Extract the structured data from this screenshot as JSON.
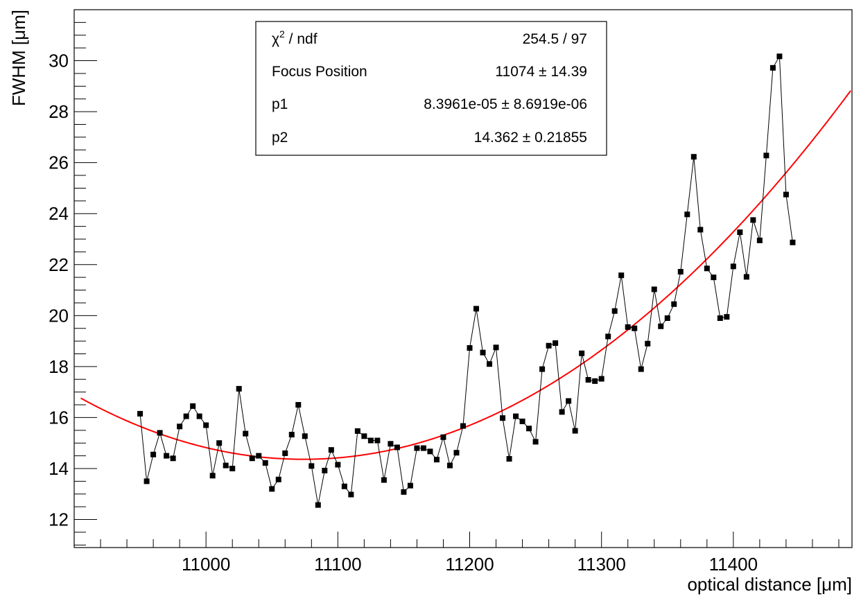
{
  "chart_data": {
    "type": "scatter",
    "title": "",
    "xlabel": "optical distance [μm]",
    "ylabel": "FWHM [μm]",
    "xlim": [
      10900,
      11490
    ],
    "ylim": [
      10.9,
      32
    ],
    "x_ticks": [
      11000,
      11100,
      11200,
      11300,
      11400
    ],
    "y_ticks": [
      12,
      14,
      16,
      18,
      20,
      22,
      24,
      26,
      28,
      30
    ],
    "grid": false,
    "series": [
      {
        "marker": "square",
        "color": "#000000",
        "points": [
          [
            10950,
            16.15
          ],
          [
            10955,
            13.5
          ],
          [
            10960,
            14.55
          ],
          [
            10965,
            15.4
          ],
          [
            10970,
            14.5
          ],
          [
            10975,
            14.4
          ],
          [
            10980,
            15.65
          ],
          [
            10985,
            16.05
          ],
          [
            10990,
            16.45
          ],
          [
            10995,
            16.05
          ],
          [
            11000,
            15.7
          ],
          [
            11005,
            13.72
          ],
          [
            11010,
            15.0
          ],
          [
            11015,
            14.12
          ],
          [
            11020,
            14.0
          ],
          [
            11025,
            17.13
          ],
          [
            11030,
            15.37
          ],
          [
            11035,
            14.4
          ],
          [
            11040,
            14.5
          ],
          [
            11045,
            14.22
          ],
          [
            11050,
            13.2
          ],
          [
            11055,
            13.57
          ],
          [
            11060,
            14.6
          ],
          [
            11065,
            15.33
          ],
          [
            11070,
            16.5
          ],
          [
            11075,
            15.27
          ],
          [
            11080,
            14.1
          ],
          [
            11085,
            12.57
          ],
          [
            11090,
            13.92
          ],
          [
            11095,
            14.73
          ],
          [
            11100,
            14.15
          ],
          [
            11105,
            13.3
          ],
          [
            11110,
            12.98
          ],
          [
            11115,
            15.47
          ],
          [
            11120,
            15.27
          ],
          [
            11125,
            15.1
          ],
          [
            11130,
            15.1
          ],
          [
            11135,
            13.55
          ],
          [
            11140,
            14.97
          ],
          [
            11145,
            14.83
          ],
          [
            11150,
            13.08
          ],
          [
            11155,
            13.33
          ],
          [
            11160,
            14.8
          ],
          [
            11165,
            14.8
          ],
          [
            11170,
            14.67
          ],
          [
            11175,
            14.35
          ],
          [
            11180,
            15.23
          ],
          [
            11185,
            14.12
          ],
          [
            11190,
            14.62
          ],
          [
            11195,
            15.67
          ],
          [
            11200,
            18.73
          ],
          [
            11205,
            20.27
          ],
          [
            11210,
            18.55
          ],
          [
            11215,
            18.1
          ],
          [
            11220,
            18.75
          ],
          [
            11225,
            15.98
          ],
          [
            11230,
            14.38
          ],
          [
            11235,
            16.05
          ],
          [
            11240,
            15.85
          ],
          [
            11245,
            15.57
          ],
          [
            11250,
            15.05
          ],
          [
            11255,
            17.9
          ],
          [
            11260,
            18.82
          ],
          [
            11265,
            18.92
          ],
          [
            11270,
            16.22
          ],
          [
            11275,
            16.65
          ],
          [
            11280,
            15.48
          ],
          [
            11285,
            18.52
          ],
          [
            11290,
            17.48
          ],
          [
            11295,
            17.43
          ],
          [
            11300,
            17.52
          ],
          [
            11305,
            19.18
          ],
          [
            11310,
            20.18
          ],
          [
            11315,
            21.58
          ],
          [
            11320,
            19.55
          ],
          [
            11325,
            19.5
          ],
          [
            11330,
            17.9
          ],
          [
            11335,
            18.9
          ],
          [
            11340,
            21.03
          ],
          [
            11345,
            19.58
          ],
          [
            11350,
            19.9
          ],
          [
            11355,
            20.45
          ],
          [
            11360,
            21.72
          ],
          [
            11365,
            23.97
          ],
          [
            11370,
            26.23
          ],
          [
            11375,
            23.37
          ],
          [
            11380,
            21.85
          ],
          [
            11385,
            21.5
          ],
          [
            11390,
            19.9
          ],
          [
            11395,
            19.95
          ],
          [
            11400,
            21.93
          ],
          [
            11405,
            23.27
          ],
          [
            11410,
            21.52
          ],
          [
            11415,
            23.75
          ],
          [
            11420,
            22.95
          ],
          [
            11425,
            26.28
          ],
          [
            11430,
            29.72
          ],
          [
            11435,
            30.17
          ],
          [
            11440,
            24.75
          ],
          [
            11445,
            22.87
          ]
        ]
      }
    ],
    "fit": {
      "color": "#ff0000",
      "model": "p2 + p1*(x - FocusPosition)^2",
      "focus_position": 11074,
      "p1": 8.3961e-05,
      "p2": 14.362,
      "x_range": [
        10905,
        11490
      ]
    },
    "stats_box": {
      "position": "top-center",
      "rows": [
        {
          "label_prefix": "χ",
          "label_sup": "2",
          "label_suffix": " / ndf",
          "value": "254.5 / 97"
        },
        {
          "label": "Focus Position",
          "value": "11074 ± 14.39"
        },
        {
          "label": "p1",
          "value": "8.3961e-05 ± 8.6919e-06"
        },
        {
          "label": "p2",
          "value": "14.362 ± 0.21855"
        }
      ]
    }
  }
}
